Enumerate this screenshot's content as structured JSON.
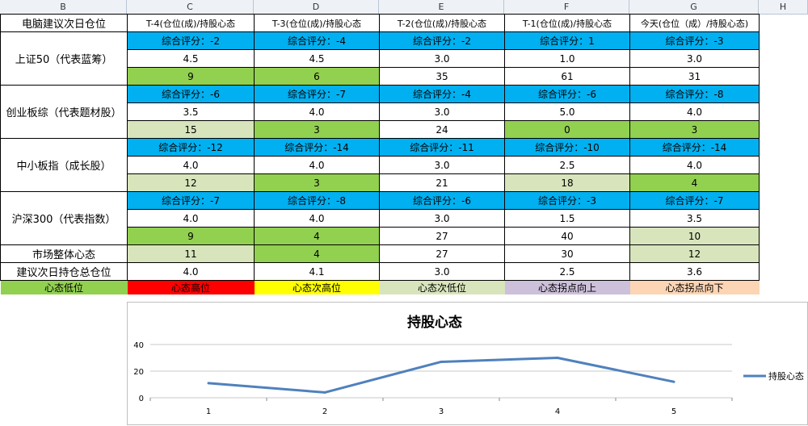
{
  "column_headers": [
    "B",
    "C",
    "D",
    "E",
    "F",
    "G",
    "H"
  ],
  "table": {
    "header": [
      "电脑建议次日仓位",
      "T-4(仓位(成)/持股心态",
      "T-3(仓位(成)/持股心态",
      "T-2(仓位(成)/持股心态",
      "T-1(仓位(成)/持股心态",
      "今天(仓位（成）/持股心态)"
    ],
    "groups": [
      {
        "label": "上证50（代表蓝筹）",
        "scores": [
          "综合评分：-2",
          "综合评分：-4",
          "综合评分：-2",
          "综合评分：1",
          "综合评分：-3"
        ],
        "positions": [
          "4.5",
          "4.5",
          "3.0",
          "1.0",
          "3.0"
        ],
        "moods": [
          "9",
          "6",
          "35",
          "61",
          "31"
        ],
        "mood_colors": [
          "g",
          "g",
          "w",
          "w",
          "w"
        ]
      },
      {
        "label": "创业板综（代表题材股）",
        "scores": [
          "综合评分：-6",
          "综合评分：-7",
          "综合评分：-4",
          "综合评分：-6",
          "综合评分：-8"
        ],
        "positions": [
          "3.5",
          "4.0",
          "3.0",
          "5.0",
          "4.0"
        ],
        "moods": [
          "15",
          "3",
          "24",
          "0",
          "3"
        ],
        "mood_colors": [
          "lg",
          "g",
          "w",
          "g",
          "g"
        ]
      },
      {
        "label": "中小板指（成长股）",
        "scores": [
          "综合评分：-12",
          "综合评分：-14",
          "综合评分：-11",
          "综合评分：-10",
          "综合评分：-14"
        ],
        "positions": [
          "4.0",
          "4.0",
          "3.0",
          "2.5",
          "4.0"
        ],
        "moods": [
          "12",
          "3",
          "21",
          "18",
          "4"
        ],
        "mood_colors": [
          "lg",
          "g",
          "w",
          "lg",
          "g"
        ]
      },
      {
        "label": "沪深300（代表指数）",
        "scores": [
          "综合评分：-7",
          "综合评分：-8",
          "综合评分：-6",
          "综合评分：-3",
          "综合评分：-7"
        ],
        "positions": [
          "4.0",
          "4.0",
          "3.0",
          "1.5",
          "3.5"
        ],
        "moods": [
          "9",
          "4",
          "27",
          "40",
          "10"
        ],
        "mood_colors": [
          "g",
          "g",
          "w",
          "w",
          "lg"
        ]
      }
    ],
    "market_mood": {
      "label": "市场整体心态",
      "values": [
        "11",
        "4",
        "27",
        "30",
        "12"
      ],
      "colors": [
        "lg",
        "g",
        "w",
        "w",
        "lg"
      ]
    },
    "total_position": {
      "label": "建议次日持仓总仓位",
      "values": [
        "4.0",
        "4.1",
        "3.0",
        "2.5",
        "3.6"
      ]
    }
  },
  "legend": [
    "心态低位",
    "心态高位",
    "心态次高位",
    "心态次低位",
    "心态拐点向上",
    "心态拐点向下"
  ],
  "colors": {
    "score_blue": "#00b0f0",
    "mood_green": "#92d050",
    "mood_light_green": "#d8e4bc",
    "legend_red": "#ff0000",
    "legend_yellow": "#ffff00",
    "legend_purple": "#ccc0da",
    "legend_peach": "#fcd5b4",
    "line_blue": "#4f81bd"
  },
  "chart_data": {
    "type": "line",
    "title": "持股心态",
    "categories": [
      "1",
      "2",
      "3",
      "4",
      "5"
    ],
    "series": [
      {
        "name": "持股心态",
        "values": [
          11,
          4,
          27,
          30,
          12
        ]
      }
    ],
    "ylim": [
      0,
      40
    ],
    "yticks": [
      "0",
      "20",
      "40"
    ],
    "grid": true,
    "legend_position": "right"
  }
}
